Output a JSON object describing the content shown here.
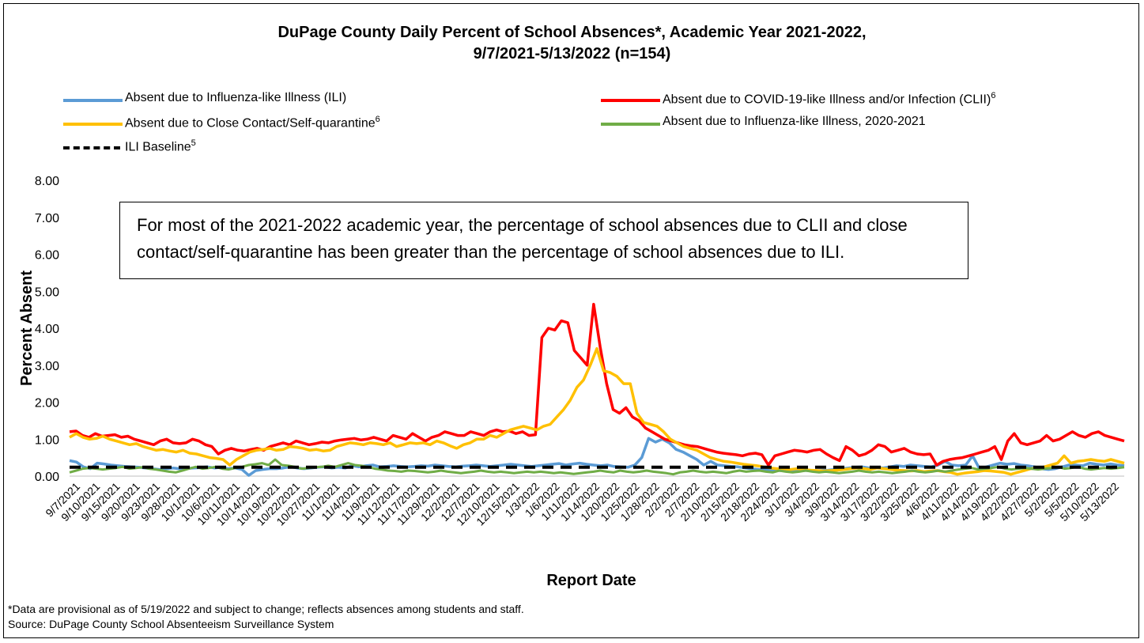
{
  "title_line1": "DuPage County Daily Percent of School Absences*, Academic Year 2021-2022,",
  "title_line2": "9/7/2021-5/13/2022 (n=154)",
  "annotation": "For most of the 2021-2022 academic year, the percentage of school absences due to CLII and close contact/self-quarantine has been greater than the percentage of school absences due to ILI.",
  "footnote1": "*Data are provisional as of 5/19/2022 and subject to change; reflects absences among students and staff.",
  "footnote2": "Source: DuPage County School Absenteeism Surveillance System",
  "legend": {
    "ili": {
      "label": "Absent due to Influenza-like Illness (ILI)",
      "sup": ""
    },
    "clii": {
      "label": "Absent due to COVID-19-like Illness and/or Infection (CLII)",
      "sup": "6"
    },
    "close": {
      "label": "Absent due to Close Contact/Self-quarantine",
      "sup": "6"
    },
    "ili2021": {
      "label": "Absent due to Influenza-like Illness, 2020-2021",
      "sup": ""
    },
    "baseline": {
      "label": "ILI Baseline",
      "sup": "5"
    }
  },
  "colors": {
    "ili": "#5b9bd5",
    "clii": "#ff0000",
    "close": "#ffc000",
    "ili2021": "#70ad47",
    "baseline": "#000000"
  },
  "chart_data": {
    "type": "line",
    "title": "DuPage County Daily Percent of School Absences*, Academic Year 2021-2022, 9/7/2021-5/13/2022 (n=154)",
    "xlabel": "Report Date",
    "ylabel": "Percent Absent",
    "ylim": [
      0,
      8
    ],
    "yticks": [
      "0.00",
      "1.00",
      "2.00",
      "3.00",
      "4.00",
      "5.00",
      "6.00",
      "7.00",
      "8.00"
    ],
    "grid": false,
    "legend_position": "top",
    "x_tick_labels": [
      "9/7/2021",
      "9/10/2021",
      "9/15/2021",
      "9/20/2021",
      "9/23/2021",
      "9/28/2021",
      "10/1/2021",
      "10/6/2021",
      "10/11/2021",
      "10/14/2021",
      "10/19/2021",
      "10/22/2021",
      "10/27/2021",
      "11/1/2021",
      "11/4/2021",
      "11/9/2021",
      "11/12/2021",
      "11/17/2021",
      "11/29/2021",
      "12/2/2021",
      "12/7/2021",
      "12/10/2021",
      "12/15/2021",
      "1/3/2022",
      "1/6/2022",
      "1/11/2022",
      "1/14/2022",
      "1/20/2022",
      "1/25/2022",
      "1/28/2022",
      "2/2/2022",
      "2/7/2022",
      "2/10/2022",
      "2/15/2022",
      "2/18/2022",
      "2/24/2022",
      "3/1/2022",
      "3/4/2022",
      "3/9/2022",
      "3/14/2022",
      "3/17/2022",
      "3/22/2022",
      "3/25/2022",
      "4/6/2022",
      "4/11/2022",
      "4/14/2022",
      "4/19/2022",
      "4/22/2022",
      "4/27/2022",
      "5/2/2022",
      "5/5/2022",
      "5/10/2022",
      "5/13/2022"
    ],
    "series": [
      {
        "name": "Absent due to Influenza-like Illness (ILI)",
        "key": "ili",
        "values": [
          0.42,
          0.38,
          0.25,
          0.2,
          0.35,
          0.33,
          0.3,
          0.28,
          0.26,
          0.25,
          0.24,
          0.22,
          0.2,
          0.18,
          0.2,
          0.22,
          0.2,
          0.21,
          0.22,
          0.23,
          0.25,
          0.22,
          0.24,
          0.2,
          0.22,
          0.18,
          0.02,
          0.15,
          0.18,
          0.2,
          0.2,
          0.22,
          0.25,
          0.22,
          0.2,
          0.22,
          0.24,
          0.25,
          0.22,
          0.24,
          0.22,
          0.28,
          0.25,
          0.28,
          0.3,
          0.25,
          0.26,
          0.28,
          0.26,
          0.25,
          0.26,
          0.28,
          0.27,
          0.3,
          0.28,
          0.26,
          0.25,
          0.27,
          0.28,
          0.3,
          0.28,
          0.26,
          0.28,
          0.3,
          0.32,
          0.3,
          0.28,
          0.26,
          0.28,
          0.3,
          0.32,
          0.34,
          0.3,
          0.33,
          0.35,
          0.32,
          0.3,
          0.28,
          0.3,
          0.26,
          0.25,
          0.24,
          0.3,
          0.5,
          1.02,
          0.92,
          1.0,
          0.9,
          0.72,
          0.65,
          0.55,
          0.45,
          0.3,
          0.4,
          0.3,
          0.28,
          0.26,
          0.25,
          0.22,
          0.2,
          0.18,
          0.18,
          0.16,
          0.15,
          0.14,
          0.15,
          0.16,
          0.15,
          0.14,
          0.15,
          0.16,
          0.18,
          0.2,
          0.22,
          0.24,
          0.25,
          0.22,
          0.24,
          0.22,
          0.25,
          0.28,
          0.26,
          0.3,
          0.28,
          0.26,
          0.25,
          0.3,
          0.4,
          0.3,
          0.28,
          0.3,
          0.55,
          0.2,
          0.25,
          0.3,
          0.35,
          0.32,
          0.34,
          0.3,
          0.28,
          0.25,
          0.2,
          0.18,
          0.2,
          0.25,
          0.3,
          0.3,
          0.28,
          0.35,
          0.32,
          0.3,
          0.33,
          0.3,
          0.28
        ]
      },
      {
        "name": "Absent due to COVID-19-like Illness and/or Infection (CLII)",
        "key": "clii",
        "values": [
          1.2,
          1.22,
          1.1,
          1.05,
          1.15,
          1.08,
          1.1,
          1.12,
          1.05,
          1.08,
          1.0,
          0.95,
          0.9,
          0.85,
          0.95,
          1.0,
          0.9,
          0.88,
          0.9,
          1.0,
          0.95,
          0.85,
          0.8,
          0.6,
          0.7,
          0.75,
          0.7,
          0.68,
          0.72,
          0.75,
          0.7,
          0.8,
          0.85,
          0.9,
          0.85,
          0.95,
          0.9,
          0.85,
          0.88,
          0.92,
          0.9,
          0.95,
          0.98,
          1.0,
          1.02,
          0.98,
          1.0,
          1.05,
          1.0,
          0.95,
          1.1,
          1.05,
          1.0,
          1.15,
          1.05,
          0.95,
          1.05,
          1.1,
          1.2,
          1.15,
          1.1,
          1.1,
          1.2,
          1.15,
          1.1,
          1.2,
          1.25,
          1.2,
          1.22,
          1.15,
          1.2,
          1.1,
          1.12,
          3.75,
          4.0,
          3.95,
          4.2,
          4.15,
          3.4,
          3.2,
          3.0,
          4.65,
          3.5,
          2.5,
          1.8,
          1.7,
          1.85,
          1.6,
          1.5,
          1.3,
          1.2,
          1.1,
          1.0,
          0.95,
          0.9,
          0.85,
          0.82,
          0.8,
          0.75,
          0.7,
          0.65,
          0.62,
          0.6,
          0.58,
          0.55,
          0.6,
          0.62,
          0.58,
          0.3,
          0.55,
          0.6,
          0.65,
          0.7,
          0.68,
          0.65,
          0.7,
          0.72,
          0.6,
          0.5,
          0.42,
          0.8,
          0.7,
          0.55,
          0.6,
          0.7,
          0.85,
          0.8,
          0.65,
          0.7,
          0.75,
          0.65,
          0.6,
          0.58,
          0.6,
          0.3,
          0.4,
          0.45,
          0.48,
          0.5,
          0.55,
          0.6,
          0.65,
          0.7,
          0.8,
          0.45,
          0.95,
          1.15,
          0.9,
          0.85,
          0.9,
          0.95,
          1.1,
          0.95,
          1.0,
          1.1,
          1.2,
          1.1,
          1.05,
          1.15,
          1.2,
          1.1,
          1.05,
          1.0,
          0.95
        ]
      },
      {
        "name": "Absent due to Close Contact/Self-quarantine",
        "key": "close",
        "values": [
          1.05,
          1.15,
          1.05,
          1.0,
          1.02,
          1.08,
          1.0,
          0.95,
          0.9,
          0.85,
          0.88,
          0.8,
          0.75,
          0.7,
          0.72,
          0.68,
          0.65,
          0.7,
          0.62,
          0.6,
          0.55,
          0.5,
          0.48,
          0.45,
          0.3,
          0.45,
          0.55,
          0.65,
          0.7,
          0.72,
          0.75,
          0.7,
          0.72,
          0.8,
          0.78,
          0.75,
          0.7,
          0.72,
          0.68,
          0.7,
          0.8,
          0.85,
          0.9,
          0.88,
          0.85,
          0.9,
          0.88,
          0.85,
          0.9,
          0.8,
          0.85,
          0.9,
          0.88,
          0.9,
          0.85,
          0.95,
          0.9,
          0.82,
          0.75,
          0.85,
          0.9,
          1.0,
          1.0,
          1.1,
          1.05,
          1.15,
          1.25,
          1.3,
          1.35,
          1.3,
          1.25,
          1.35,
          1.4,
          1.6,
          1.8,
          2.05,
          2.4,
          2.6,
          3.0,
          3.45,
          2.85,
          2.8,
          2.7,
          2.5,
          2.5,
          1.7,
          1.45,
          1.4,
          1.35,
          1.2,
          1.0,
          0.9,
          0.8,
          0.75,
          0.7,
          0.6,
          0.5,
          0.45,
          0.4,
          0.38,
          0.35,
          0.32,
          0.3,
          0.28,
          0.25,
          0.22,
          0.2,
          0.2,
          0.18,
          0.2,
          0.18,
          0.16,
          0.15,
          0.14,
          0.15,
          0.16,
          0.18,
          0.2,
          0.22,
          0.2,
          0.18,
          0.22,
          0.2,
          0.18,
          0.16,
          0.15,
          0.14,
          0.15,
          0.12,
          0.14,
          0.15,
          0.12,
          0.1,
          0.05,
          0.08,
          0.1,
          0.12,
          0.15,
          0.14,
          0.12,
          0.1,
          0.05,
          0.1,
          0.15,
          0.2,
          0.22,
          0.25,
          0.3,
          0.35,
          0.55,
          0.35,
          0.4,
          0.42,
          0.45,
          0.42,
          0.4,
          0.45,
          0.4,
          0.35
        ]
      },
      {
        "name": "Absent due to Influenza-like Illness, 2020-2021",
        "key": "ili2021",
        "values": [
          0.1,
          0.15,
          0.2,
          0.22,
          0.2,
          0.18,
          0.2,
          0.22,
          0.25,
          0.2,
          0.22,
          0.24,
          0.2,
          0.18,
          0.15,
          0.12,
          0.1,
          0.15,
          0.2,
          0.25,
          0.2,
          0.22,
          0.25,
          0.2,
          0.18,
          0.22,
          0.25,
          0.3,
          0.32,
          0.35,
          0.3,
          0.45,
          0.3,
          0.28,
          0.25,
          0.2,
          0.22,
          0.24,
          0.25,
          0.28,
          0.25,
          0.3,
          0.35,
          0.3,
          0.28,
          0.25,
          0.2,
          0.18,
          0.15,
          0.14,
          0.12,
          0.15,
          0.14,
          0.12,
          0.1,
          0.12,
          0.15,
          0.12,
          0.1,
          0.08,
          0.1,
          0.12,
          0.15,
          0.12,
          0.1,
          0.12,
          0.1,
          0.08,
          0.1,
          0.12,
          0.1,
          0.12,
          0.1,
          0.08,
          0.1,
          0.08,
          0.06,
          0.08,
          0.1,
          0.12,
          0.15,
          0.12,
          0.1,
          0.15,
          0.12,
          0.1,
          0.12,
          0.15,
          0.12,
          0.1,
          0.08,
          0.05,
          0.1,
          0.12,
          0.15,
          0.12,
          0.1,
          0.12,
          0.1,
          0.08,
          0.12,
          0.15,
          0.12,
          0.14,
          0.15,
          0.12,
          0.1,
          0.15,
          0.12,
          0.1,
          0.12,
          0.15,
          0.12,
          0.1,
          0.12,
          0.1,
          0.08,
          0.1,
          0.12,
          0.15,
          0.12,
          0.1,
          0.12,
          0.1,
          0.08,
          0.1,
          0.12,
          0.15,
          0.12,
          0.1,
          0.12,
          0.15,
          0.12,
          0.15,
          0.18,
          0.2,
          0.22,
          0.18,
          0.2,
          0.22,
          0.25,
          0.2,
          0.18,
          0.2,
          0.22,
          0.2,
          0.18,
          0.2,
          0.22,
          0.25,
          0.2,
          0.22,
          0.25,
          0.2,
          0.18,
          0.2,
          0.22,
          0.2,
          0.22,
          0.24
        ]
      },
      {
        "name": "ILI Baseline",
        "key": "baseline",
        "values": [
          0.24,
          0.24
        ]
      }
    ]
  }
}
